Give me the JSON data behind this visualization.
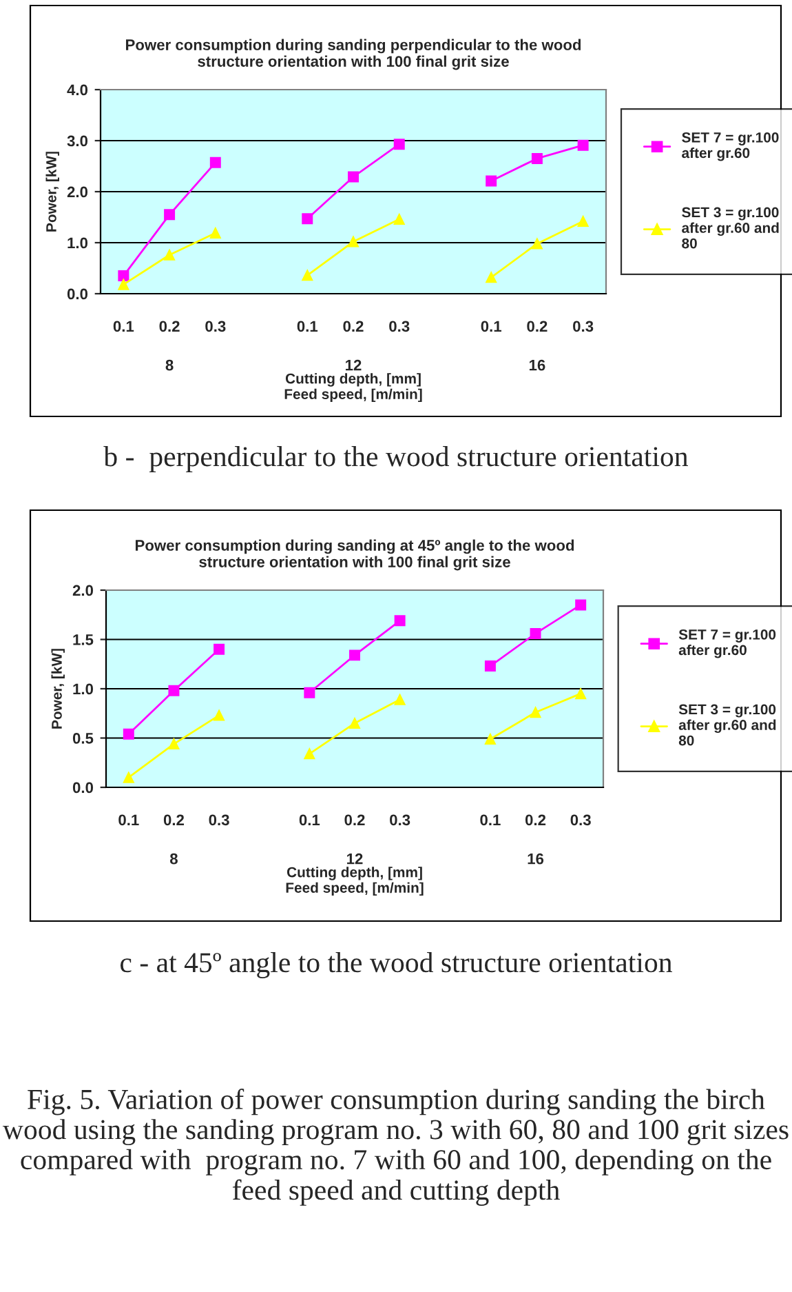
{
  "chart_data": [
    {
      "type": "line",
      "title": "Power consumption during sanding perpendicular to the wood\nstructure orientation with 100 final grit size",
      "xlabel": "Cutting depth, [mm]\nFeed speed, [m/min]",
      "ylabel": "Power, [kW]",
      "categories": [
        "0.1",
        "0.2",
        "0.3",
        null,
        "0.1",
        "0.2",
        "0.3",
        null,
        "0.1",
        "0.2",
        "0.3"
      ],
      "series": [
        {
          "name": "SET 7 = gr.100\nafter gr.60",
          "color": "#ff00ff",
          "marker": "square",
          "values": [
            0.35,
            1.55,
            2.57,
            null,
            1.47,
            2.29,
            2.93,
            null,
            2.21,
            2.65,
            2.91
          ]
        },
        {
          "name": "SET 3 = gr.100\nafter gr.60 and\n80",
          "color": "#ffff00",
          "marker": "triangle",
          "values": [
            0.18,
            0.76,
            1.19,
            null,
            0.36,
            1.02,
            1.46,
            null,
            0.32,
            0.98,
            1.42
          ]
        }
      ],
      "ylim": [
        0,
        4
      ],
      "yticks": [
        {
          "value": 0,
          "label": "0.0"
        },
        {
          "value": 1,
          "label": "1.0"
        },
        {
          "value": 2,
          "label": "2.0"
        },
        {
          "value": 3,
          "label": "3.0"
        },
        {
          "value": 4,
          "label": "4.0"
        }
      ],
      "grid": "y",
      "legend": "right",
      "annotations": [
        "8",
        "12",
        "16",
        "b -  perpendicular to the wood structure orientation"
      ]
    },
    {
      "type": "line",
      "title": "Power consumption during sanding at 45º angle to the wood\nstructure orientation with 100 final grit size",
      "xlabel": "Cutting depth, [mm]\nFeed speed, [m/min]",
      "ylabel": "Power, [kW]",
      "categories": [
        "0.1",
        "0.2",
        "0.3",
        null,
        "0.1",
        "0.2",
        "0.3",
        null,
        "0.1",
        "0.2",
        "0.3"
      ],
      "series": [
        {
          "name": "SET 7 = gr.100\nafter gr.60",
          "color": "#ff00ff",
          "marker": "square",
          "values": [
            0.54,
            0.98,
            1.4,
            null,
            0.96,
            1.34,
            1.69,
            null,
            1.23,
            1.56,
            1.85
          ]
        },
        {
          "name": "SET 3 = gr.100\nafter gr.60 and\n80",
          "color": "#ffff00",
          "marker": "triangle",
          "values": [
            0.1,
            0.44,
            0.73,
            null,
            0.34,
            0.65,
            0.89,
            null,
            0.49,
            0.76,
            0.95
          ]
        }
      ],
      "ylim": [
        0,
        2
      ],
      "yticks": [
        {
          "value": 0,
          "label": "0.0"
        },
        {
          "value": 0.5,
          "label": "0.5"
        },
        {
          "value": 1,
          "label": "1.0"
        },
        {
          "value": 1.5,
          "label": "1.5"
        },
        {
          "value": 2,
          "label": "2.0"
        }
      ],
      "grid": "y",
      "legend": "right",
      "annotations": [
        "8",
        "12",
        "16",
        "c - at 45º angle to the wood structure orientation",
        "Fig. 5. Variation of power consumption during sanding the birch wood using the sanding program no. 3 with 60, 80 and 100 grit sizes compared with  program no. 7 with 60 and 100, depending on the feed speed and cutting depth"
      ]
    }
  ]
}
